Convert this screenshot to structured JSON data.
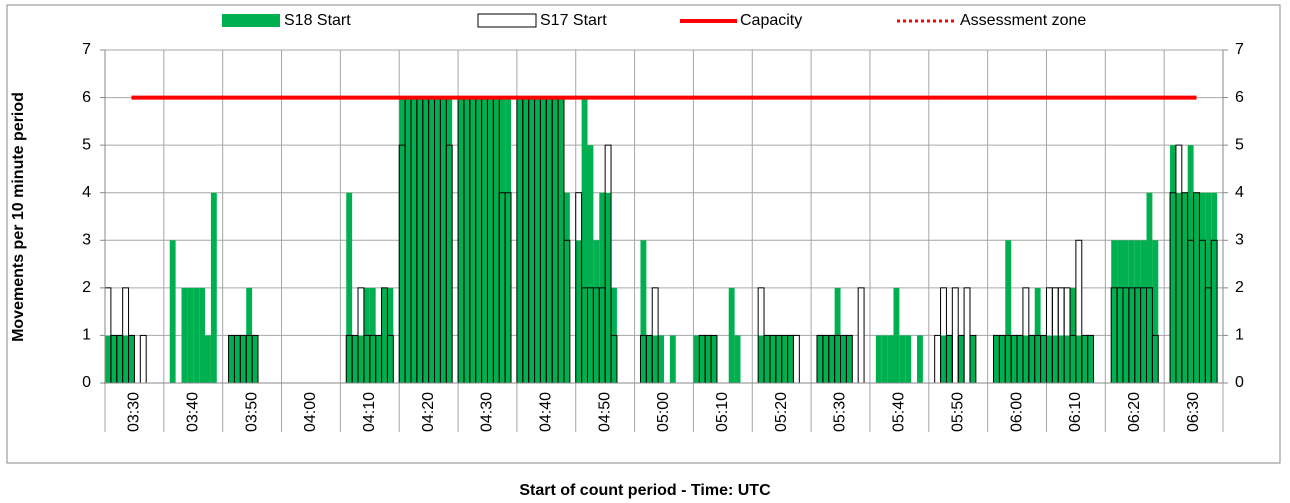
{
  "chart_data": {
    "type": "bar",
    "x_label": "Start of count period - Time: UTC",
    "y_label": "Movements per 10 minute period",
    "categories": [
      "03:30",
      null,
      null,
      null,
      null,
      null,
      null,
      null,
      null,
      null,
      "03:40",
      null,
      null,
      null,
      null,
      null,
      null,
      null,
      null,
      null,
      "03:50",
      null,
      null,
      null,
      null,
      null,
      null,
      null,
      null,
      null,
      "04:00",
      null,
      null,
      null,
      null,
      null,
      null,
      null,
      null,
      null,
      "04:10",
      null,
      null,
      null,
      null,
      null,
      null,
      null,
      null,
      null,
      "04:20",
      null,
      null,
      null,
      null,
      null,
      null,
      null,
      null,
      null,
      "04:30",
      null,
      null,
      null,
      null,
      null,
      null,
      null,
      null,
      null,
      "04:40",
      null,
      null,
      null,
      null,
      null,
      null,
      null,
      null,
      null,
      "04:50",
      null,
      null,
      null,
      null,
      null,
      null,
      null,
      null,
      null,
      "05:00",
      null,
      null,
      null,
      null,
      null,
      null,
      null,
      null,
      null,
      "05:10",
      null,
      null,
      null,
      null,
      null,
      null,
      null,
      null,
      null,
      "05:20",
      null,
      null,
      null,
      null,
      null,
      null,
      null,
      null,
      null,
      "05:30",
      null,
      null,
      null,
      null,
      null,
      null,
      null,
      null,
      null,
      "05:40",
      null,
      null,
      null,
      null,
      null,
      null,
      null,
      null,
      null,
      "05:50",
      null,
      null,
      null,
      null,
      null,
      null,
      null,
      null,
      null,
      "06:00",
      null,
      null,
      null,
      null,
      null,
      null,
      null,
      null,
      null,
      "06:10",
      null,
      null,
      null,
      null,
      null,
      null,
      null,
      null,
      null,
      "06:20",
      null,
      null,
      null,
      null,
      null,
      null,
      null,
      null,
      null,
      "06:30",
      null,
      null,
      null,
      null,
      null,
      null,
      null,
      null,
      null
    ],
    "series": [
      {
        "name": "S18 Start",
        "color": "#00b050",
        "values": [
          1,
          1,
          1,
          1,
          1,
          0,
          0,
          0,
          0,
          0,
          0,
          3,
          0,
          2,
          2,
          2,
          2,
          1,
          4,
          0,
          0,
          1,
          1,
          1,
          2,
          1,
          0,
          0,
          0,
          0,
          0,
          0,
          0,
          0,
          0,
          0,
          0,
          0,
          0,
          0,
          0,
          4,
          1,
          1,
          2,
          2,
          1,
          2,
          2,
          0,
          6,
          6,
          6,
          6,
          6,
          6,
          6,
          6,
          6,
          0,
          6,
          6,
          6,
          6,
          6,
          6,
          6,
          6,
          6,
          0,
          6,
          6,
          6,
          6,
          6,
          6,
          6,
          6,
          4,
          0,
          3,
          6,
          5,
          3,
          4,
          4,
          2,
          0,
          0,
          0,
          0,
          3,
          1,
          1,
          1,
          0,
          1,
          0,
          0,
          0,
          1,
          1,
          1,
          1,
          0,
          0,
          2,
          1,
          0,
          0,
          0,
          1,
          1,
          1,
          1,
          1,
          1,
          0,
          0,
          0,
          0,
          1,
          1,
          1,
          2,
          1,
          1,
          0,
          0,
          0,
          0,
          1,
          1,
          1,
          2,
          1,
          1,
          0,
          1,
          0,
          0,
          0,
          1,
          1,
          0,
          1,
          0,
          1,
          0,
          0,
          0,
          1,
          1,
          3,
          1,
          1,
          1,
          1,
          2,
          1,
          1,
          1,
          1,
          1,
          2,
          1,
          1,
          1,
          0,
          0,
          0,
          3,
          3,
          3,
          3,
          3,
          3,
          4,
          3,
          0,
          0,
          5,
          4,
          4,
          5,
          4,
          4,
          4,
          4,
          0
        ]
      },
      {
        "name": "S17 Start",
        "color": "#ffffff",
        "values": [
          2,
          1,
          1,
          2,
          1,
          0,
          1,
          0,
          0,
          0,
          0,
          0,
          0,
          0,
          0,
          0,
          0,
          0,
          0,
          0,
          0,
          1,
          1,
          1,
          1,
          1,
          0,
          0,
          0,
          0,
          0,
          0,
          0,
          0,
          0,
          0,
          0,
          0,
          0,
          0,
          0,
          1,
          1,
          2,
          1,
          1,
          1,
          2,
          1,
          0,
          5,
          6,
          6,
          6,
          6,
          6,
          6,
          6,
          5,
          0,
          6,
          6,
          6,
          6,
          6,
          6,
          6,
          4,
          4,
          0,
          6,
          6,
          6,
          6,
          6,
          6,
          6,
          6,
          3,
          0,
          4,
          2,
          2,
          2,
          2,
          5,
          1,
          0,
          0,
          0,
          0,
          1,
          1,
          2,
          0,
          0,
          0,
          0,
          0,
          0,
          0,
          1,
          1,
          1,
          0,
          0,
          0,
          0,
          0,
          0,
          0,
          2,
          1,
          1,
          1,
          1,
          1,
          1,
          0,
          0,
          0,
          1,
          1,
          1,
          1,
          1,
          1,
          0,
          2,
          0,
          0,
          0,
          0,
          0,
          0,
          0,
          0,
          0,
          0,
          0,
          0,
          1,
          2,
          1,
          2,
          1,
          2,
          1,
          0,
          0,
          0,
          1,
          1,
          1,
          1,
          1,
          2,
          1,
          1,
          1,
          2,
          2,
          2,
          2,
          1,
          3,
          1,
          1,
          0,
          0,
          0,
          2,
          2,
          2,
          2,
          2,
          2,
          2,
          1,
          0,
          0,
          4,
          5,
          4,
          3,
          4,
          3,
          2,
          3,
          0
        ]
      },
      {
        "name": "Capacity",
        "color": "#ff0000",
        "type": "line",
        "line_style": "solid",
        "values": [
          null,
          null,
          null,
          null,
          6,
          6,
          6,
          6,
          6,
          6,
          6,
          6,
          6,
          6,
          6,
          6,
          6,
          6,
          6,
          6,
          6,
          6,
          6,
          6,
          6,
          6,
          6,
          6,
          6,
          6,
          6,
          6,
          6,
          6,
          6,
          6,
          6,
          6,
          6,
          6,
          6,
          6,
          6,
          6,
          6,
          6,
          6,
          6,
          6,
          6,
          6,
          6,
          6,
          6,
          6,
          6,
          6,
          6,
          6,
          6,
          6,
          6,
          6,
          6,
          6,
          6,
          6,
          6,
          6,
          6,
          6,
          6,
          6,
          6,
          6,
          6,
          6,
          6,
          6,
          6,
          6,
          6,
          6,
          6,
          6,
          6,
          6,
          6,
          6,
          6,
          6,
          6,
          6,
          6,
          6,
          6,
          6,
          6,
          6,
          6,
          6,
          6,
          6,
          6,
          6,
          6,
          6,
          6,
          6,
          6,
          6,
          6,
          6,
          6,
          6,
          6,
          6,
          6,
          6,
          6,
          6,
          6,
          6,
          6,
          6,
          6,
          6,
          6,
          6,
          6,
          6,
          6,
          6,
          6,
          6,
          6,
          6,
          6,
          6,
          6,
          6,
          6,
          6,
          6,
          6,
          6,
          6,
          6,
          6,
          6,
          6,
          6,
          6,
          6,
          6,
          6,
          6,
          6,
          6,
          6,
          6,
          6,
          6,
          6,
          6,
          6,
          6,
          6,
          6,
          6,
          6,
          6,
          6,
          6,
          6,
          6,
          6,
          6,
          6,
          6,
          6,
          6,
          6,
          6,
          6,
          6,
          null,
          null,
          null,
          null
        ]
      },
      {
        "name": "Assessment zone",
        "color": "#ff0000",
        "type": "line",
        "line_style": "dotted",
        "values": [
          null,
          null,
          null,
          null,
          6,
          6,
          6,
          6,
          6,
          6,
          6,
          6,
          6,
          6,
          6,
          6,
          6,
          6,
          6,
          6,
          6,
          6,
          6,
          6,
          6,
          6,
          6,
          6,
          6,
          6,
          6,
          6,
          6,
          6,
          6,
          6,
          6,
          6,
          6,
          6,
          6,
          6,
          6,
          6,
          6,
          6,
          6,
          6,
          6,
          6,
          6,
          6,
          6,
          6,
          6,
          6,
          6,
          6,
          6,
          6,
          6,
          6,
          6,
          6,
          6,
          6,
          6,
          6,
          6,
          6,
          6,
          6,
          6,
          6,
          6,
          6,
          6,
          6,
          6,
          6,
          6,
          6,
          6,
          6,
          6,
          6,
          6,
          6,
          6,
          6,
          6,
          6,
          6,
          6,
          6,
          6,
          6,
          6,
          6,
          6,
          6,
          6,
          6,
          6,
          6,
          6,
          6,
          6,
          6,
          6,
          6,
          6,
          6,
          6,
          6,
          6,
          6,
          6,
          6,
          6,
          6,
          6,
          6,
          6,
          6,
          6,
          6,
          6,
          6,
          6,
          6,
          6,
          6,
          6,
          6,
          6,
          6,
          6,
          6,
          6,
          6,
          6,
          6,
          6,
          6,
          6,
          6,
          6,
          6,
          6,
          6,
          6,
          6,
          6,
          6,
          6,
          6,
          6,
          6,
          6,
          6,
          6,
          6,
          6,
          6,
          6,
          6,
          6,
          6,
          6,
          6,
          6,
          6,
          6,
          6,
          6,
          6,
          6,
          6,
          6,
          6,
          6,
          6,
          6,
          6,
          6,
          null,
          null,
          null,
          null
        ]
      }
    ],
    "ylim": [
      0,
      7
    ],
    "yticks": [
      0,
      1,
      2,
      3,
      4,
      5,
      6,
      7
    ],
    "y2lim": [
      0,
      7
    ],
    "y2ticks": [
      0,
      1,
      2,
      3,
      4,
      5,
      6,
      7
    ],
    "grid": true,
    "legend": "top"
  }
}
